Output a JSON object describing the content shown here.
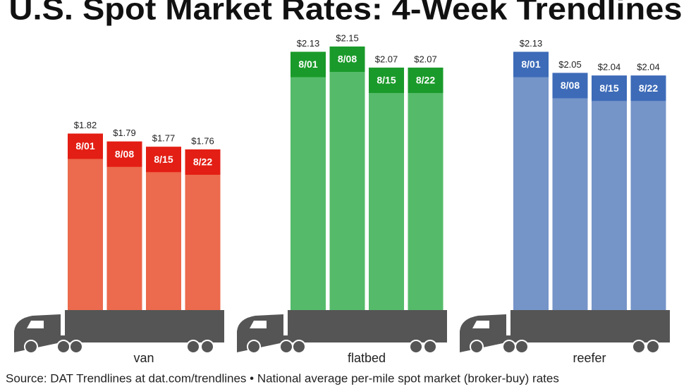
{
  "chart_data": {
    "type": "bar",
    "title": "U.S. Spot Market Rates: 4-Week Trendlines",
    "note": "Source: DAT Trendlines at dat.com/trendlines • National average per-mile spot market (broker-buy) rates",
    "categories": [
      "8/01",
      "8/08",
      "8/15",
      "8/22"
    ],
    "series": [
      {
        "name": "van",
        "color": "#ec6a4d",
        "label_color": "#e31e14",
        "values": [
          1.82,
          1.79,
          1.77,
          1.76
        ],
        "value_labels": [
          "$1.82",
          "$1.79",
          "$1.77",
          "$1.76"
        ]
      },
      {
        "name": "flatbed",
        "color": "#55bb6a",
        "label_color": "#1a9a2a",
        "values": [
          2.13,
          2.15,
          2.07,
          2.07
        ],
        "value_labels": [
          "$2.13",
          "$2.15",
          "$2.07",
          "$2.07"
        ]
      },
      {
        "name": "reefer",
        "color": "#7594c8",
        "label_color": "#3d6bb8",
        "values": [
          2.13,
          2.05,
          2.04,
          2.04
        ],
        "value_labels": [
          "$2.13",
          "$2.05",
          "$2.04",
          "$2.04"
        ]
      }
    ]
  }
}
